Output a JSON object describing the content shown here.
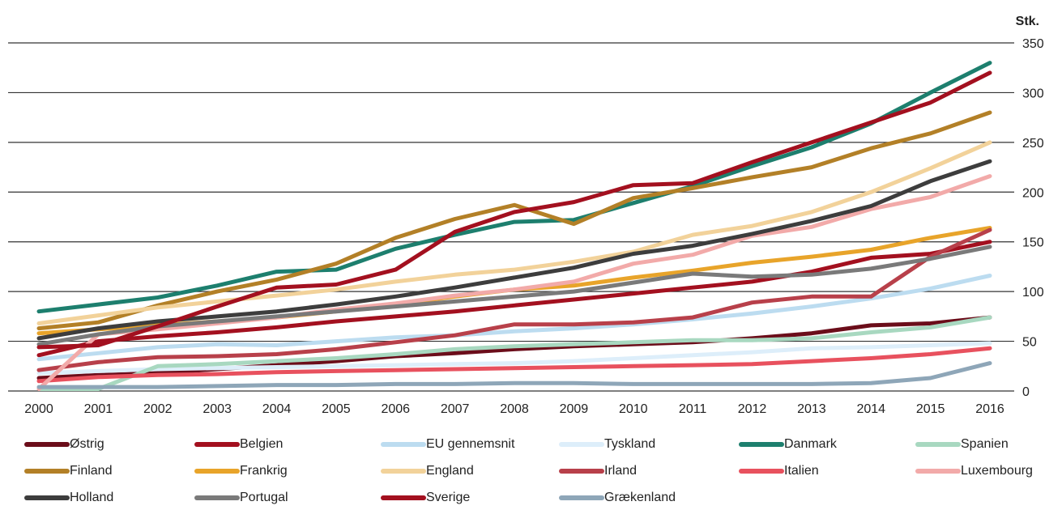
{
  "chart_data": {
    "type": "line",
    "unit_label": "Stk.",
    "x": [
      "2000",
      "2001",
      "2002",
      "2003",
      "2004",
      "2005",
      "2006",
      "2007",
      "2008",
      "2009",
      "2010",
      "2011",
      "2012",
      "2013",
      "2014",
      "2015",
      "2016"
    ],
    "ylim": [
      0,
      350
    ],
    "yticks": [
      "0",
      "50",
      "100",
      "150",
      "200",
      "250",
      "300",
      "350"
    ],
    "grid": true,
    "legend_position": "bottom",
    "series": [
      {
        "name": "Østrig",
        "color": "#6b0d1a",
        "values": [
          13,
          16,
          18,
          22,
          26,
          30,
          35,
          38,
          42,
          45,
          47,
          49,
          53,
          58,
          66,
          68,
          74
        ]
      },
      {
        "name": "Belgien",
        "color": "#a3101f",
        "values": [
          36,
          50,
          55,
          59,
          64,
          70,
          75,
          80,
          86,
          92,
          98,
          104,
          110,
          120,
          134,
          138,
          150
        ]
      },
      {
        "name": "EU gennemsnit",
        "color": "#bcdcf0",
        "values": [
          32,
          38,
          44,
          47,
          46,
          50,
          54,
          56,
          60,
          63,
          67,
          72,
          78,
          85,
          93,
          103,
          116
        ]
      },
      {
        "name": "Tyskland",
        "color": "#ddeefa",
        "values": [
          18,
          20,
          22,
          23,
          24,
          25,
          26,
          27,
          28,
          30,
          33,
          36,
          39,
          43,
          44,
          46,
          48
        ]
      },
      {
        "name": "Danmark",
        "color": "#1d7f6e",
        "values": [
          80,
          87,
          94,
          106,
          120,
          122,
          143,
          157,
          170,
          172,
          189,
          206,
          226,
          245,
          269,
          300,
          330
        ]
      },
      {
        "name": "Spanien",
        "color": "#a8d8c0",
        "values": [
          2,
          2,
          25,
          27,
          30,
          33,
          37,
          42,
          45,
          47,
          49,
          51,
          51,
          53,
          59,
          64,
          74
        ]
      },
      {
        "name": "Finland",
        "color": "#b38027",
        "values": [
          63,
          69,
          86,
          100,
          112,
          128,
          154,
          173,
          187,
          168,
          194,
          204,
          215,
          225,
          244,
          259,
          280
        ]
      },
      {
        "name": "Frankrig",
        "color": "#e8a42a",
        "values": [
          58,
          62,
          66,
          70,
          74,
          80,
          87,
          95,
          102,
          106,
          114,
          121,
          129,
          135,
          142,
          154,
          164
        ]
      },
      {
        "name": "England",
        "color": "#f2d29a",
        "values": [
          68,
          76,
          84,
          90,
          96,
          102,
          110,
          117,
          122,
          130,
          140,
          157,
          166,
          180,
          200,
          224,
          250
        ]
      },
      {
        "name": "Irland",
        "color": "#b8404a",
        "values": [
          21,
          29,
          34,
          35,
          37,
          42,
          49,
          56,
          67,
          67,
          69,
          74,
          89,
          95,
          95,
          135,
          162
        ]
      },
      {
        "name": "Italien",
        "color": "#e8515e",
        "values": [
          10,
          14,
          16,
          17,
          19,
          20,
          21,
          22,
          23,
          24,
          25,
          26,
          27,
          30,
          33,
          37,
          43
        ]
      },
      {
        "name": "Luxembourg",
        "color": "#f2aaa9",
        "values": [
          2,
          57,
          62,
          68,
          74,
          82,
          88,
          96,
          102,
          110,
          128,
          137,
          156,
          165,
          183,
          195,
          216
        ]
      },
      {
        "name": "Holland",
        "color": "#3d3d3d",
        "values": [
          53,
          63,
          70,
          75,
          80,
          87,
          95,
          104,
          114,
          124,
          138,
          146,
          158,
          171,
          186,
          211,
          231
        ]
      },
      {
        "name": "Portugal",
        "color": "#7a7a7a",
        "values": [
          47,
          57,
          65,
          70,
          75,
          80,
          85,
          90,
          95,
          100,
          109,
          118,
          115,
          117,
          123,
          133,
          145
        ]
      },
      {
        "name": "Sverige",
        "color": "#a3101f",
        "values": [
          44,
          46,
          65,
          85,
          104,
          107,
          122,
          160,
          180,
          190,
          207,
          209,
          230,
          250,
          270,
          290,
          320
        ]
      },
      {
        "name": "Grækenland",
        "color": "#8ea6b8",
        "values": [
          4,
          4,
          4,
          5,
          6,
          6,
          7,
          7,
          8,
          8,
          7,
          7,
          7,
          7,
          8,
          13,
          28
        ]
      }
    ]
  }
}
